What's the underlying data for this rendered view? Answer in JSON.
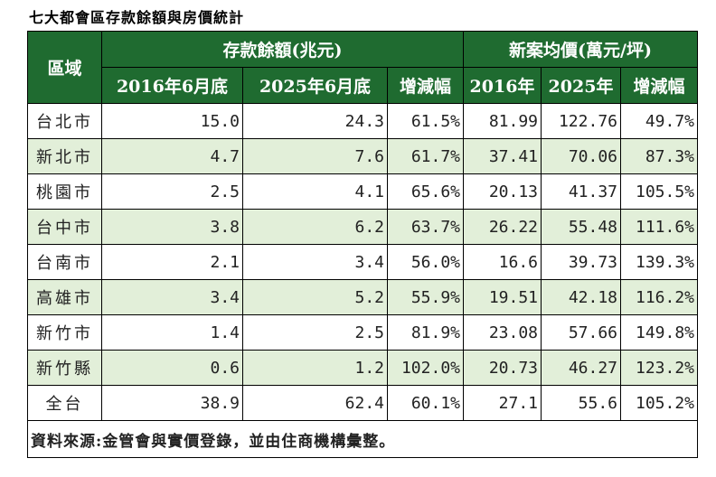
{
  "header": {
    "title": "七大都會區存款餘額與房價統計"
  },
  "table": {
    "group_headers": [
      "區域",
      "存款餘額(兆元)",
      "新案均價(萬元/坪)"
    ],
    "columns": [
      "2016年6月底",
      "2025年6月底",
      "增減幅",
      "2016年",
      "2025年",
      "增減幅"
    ],
    "rows": [
      [
        "台北市",
        "15.0",
        "24.3",
        "61.5%",
        "81.99",
        "122.76",
        "49.7%"
      ],
      [
        "新北市",
        "4.7",
        "7.6",
        "61.7%",
        "37.41",
        "70.06",
        "87.3%"
      ],
      [
        "桃園市",
        "2.5",
        "4.1",
        "65.6%",
        "20.13",
        "41.37",
        "105.5%"
      ],
      [
        "台中市",
        "3.8",
        "6.2",
        "63.7%",
        "26.22",
        "55.48",
        "111.6%"
      ],
      [
        "台南市",
        "2.1",
        "3.4",
        "56.0%",
        "16.6",
        "39.73",
        "139.3%"
      ],
      [
        "高雄市",
        "3.4",
        "5.2",
        "55.9%",
        "19.51",
        "42.18",
        "116.2%"
      ],
      [
        "新竹市",
        "1.4",
        "2.5",
        "81.9%",
        "23.08",
        "57.66",
        "149.8%"
      ],
      [
        "新竹縣",
        "0.6",
        "1.2",
        "102.0%",
        "20.73",
        "46.27",
        "123.2%"
      ],
      [
        "全台",
        "38.9",
        "62.4",
        "60.1%",
        "27.1",
        "55.6",
        "105.2%"
      ]
    ]
  },
  "footer": {
    "source": "資料來源:金管會與實價登錄，並由住商機構彙整。"
  }
}
